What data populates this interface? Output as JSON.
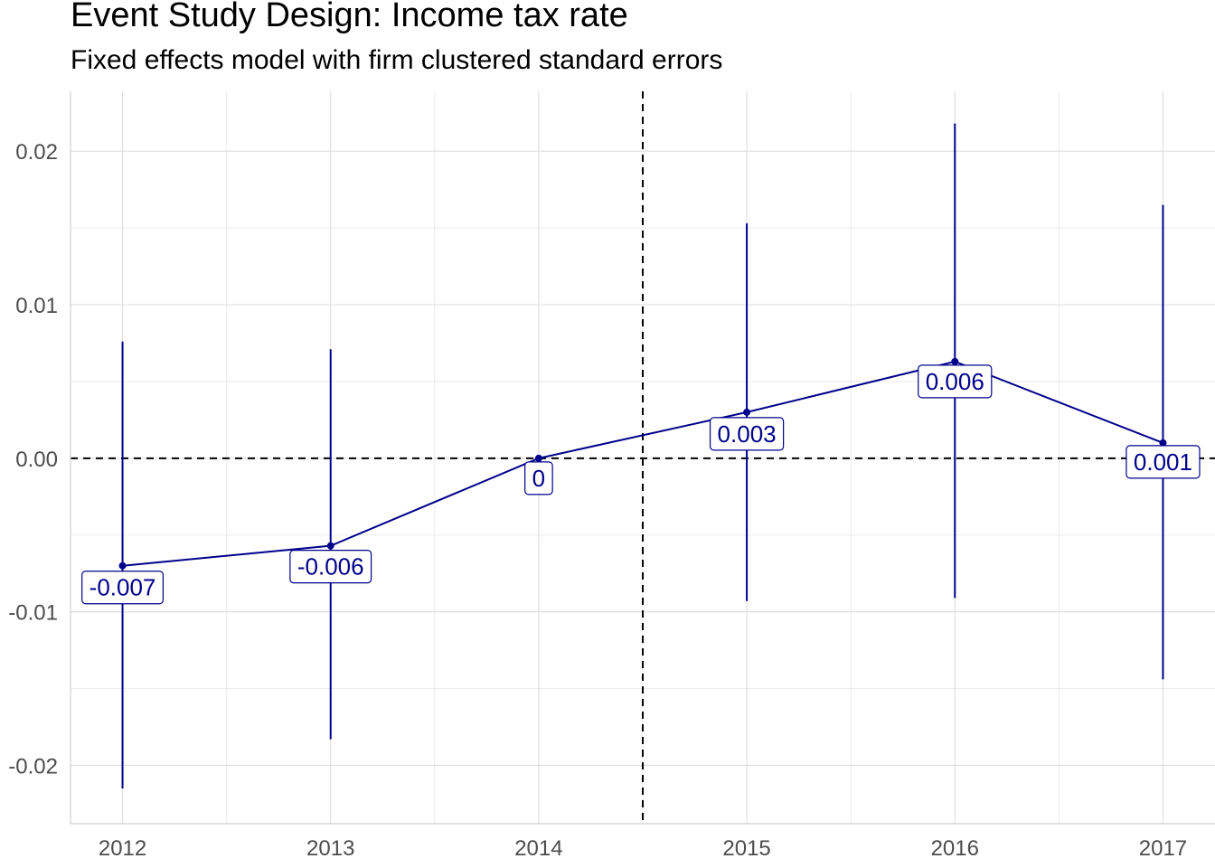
{
  "chart_data": {
    "type": "line",
    "title": "Event Study Design: Income tax rate",
    "subtitle": "Fixed effects model with firm clustered standard errors",
    "xlabel": "",
    "ylabel": "",
    "x": [
      2012,
      2013,
      2014,
      2015,
      2016,
      2017
    ],
    "estimate": [
      -0.007,
      -0.0057,
      0.0,
      0.003,
      0.0063,
      0.001
    ],
    "ci_low": [
      -0.0215,
      -0.0183,
      0.0,
      -0.0093,
      -0.0091,
      -0.0144
    ],
    "ci_high": [
      0.0076,
      0.0071,
      0.0,
      0.0153,
      0.0218,
      0.0165
    ],
    "point_labels": [
      "-0.007",
      "-0.006",
      "0",
      "0.003",
      "0.006",
      "0.001"
    ],
    "x_ticks": [
      "2012",
      "2013",
      "2014",
      "2015",
      "2016",
      "2017"
    ],
    "y_ticks": [
      "-0.02",
      "-0.01",
      "0.00",
      "0.01",
      "0.02"
    ],
    "y_tick_values": [
      -0.02,
      -0.01,
      0.0,
      0.01,
      0.02
    ],
    "xlim": [
      2011.75,
      2017.25
    ],
    "ylim": [
      -0.0238,
      0.0239
    ],
    "reference_lines": {
      "horizontal_y": 0.0,
      "vertical_x": 2014.5
    },
    "grid": true,
    "legend": "none",
    "colors": {
      "series": "#00008b",
      "grid": "#e0e0e0",
      "reference": "#000000",
      "tick_text": "#4d4d4d"
    }
  }
}
